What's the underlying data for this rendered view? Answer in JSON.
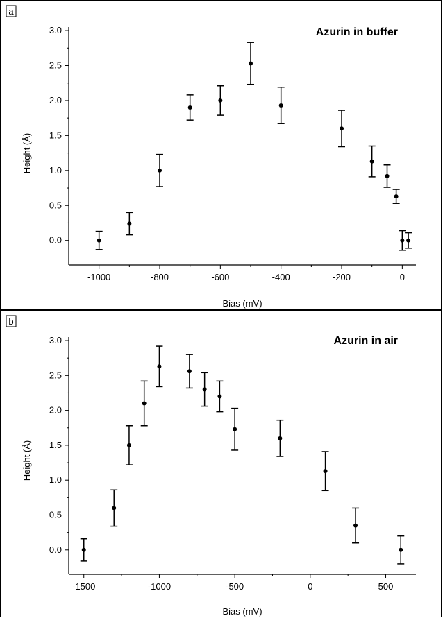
{
  "chart_data": [
    {
      "type": "scatter",
      "panel_label": "a",
      "title": "Azurin in buffer",
      "xlabel": "Bias (mV)",
      "ylabel": "Height (Å)",
      "xlim": [
        -1100,
        45
      ],
      "ylim": [
        -0.35,
        3.05
      ],
      "xticks": [
        -1000,
        -800,
        -600,
        -400,
        -200,
        0
      ],
      "xtick_labels": [
        "-1000",
        "-800",
        "-600",
        "-400",
        "-200",
        "0"
      ],
      "yticks": [
        0.0,
        0.5,
        1.0,
        1.5,
        2.0,
        2.5,
        3.0
      ],
      "ytick_labels": [
        "0.0",
        "0.5",
        "1.0",
        "1.5",
        "2.0",
        "2.5",
        "3.0"
      ],
      "grid": false,
      "series": [
        {
          "x": [
            -1000,
            -900,
            -800,
            -700,
            -600,
            -500,
            -400,
            -200,
            -100,
            -50,
            -20,
            0,
            20
          ],
          "y": [
            0.0,
            0.24,
            1.0,
            1.9,
            2.0,
            2.53,
            1.93,
            1.6,
            1.13,
            0.92,
            0.63,
            0.0,
            0.0
          ],
          "err": [
            0.13,
            0.16,
            0.23,
            0.18,
            0.21,
            0.3,
            0.26,
            0.26,
            0.22,
            0.16,
            0.1,
            0.14,
            0.11
          ]
        }
      ]
    },
    {
      "type": "scatter",
      "panel_label": "b",
      "title": "Azurin in air",
      "xlabel": "Bias (mV)",
      "ylabel": "Height (Å)",
      "xlim": [
        -1600,
        700
      ],
      "ylim": [
        -0.35,
        3.05
      ],
      "xticks": [
        -1500,
        -1000,
        -500,
        0,
        500
      ],
      "xtick_labels": [
        "-1500",
        "-1000",
        "-500",
        "0",
        "500"
      ],
      "yticks": [
        0.0,
        0.5,
        1.0,
        1.5,
        2.0,
        2.5,
        3.0
      ],
      "ytick_labels": [
        "0.0",
        "0.5",
        "1.0",
        "1.5",
        "2.0",
        "2.5",
        "3.0"
      ],
      "grid": false,
      "series": [
        {
          "x": [
            -1500,
            -1300,
            -1200,
            -1100,
            -1000,
            -800,
            -700,
            -600,
            -500,
            -200,
            100,
            300,
            600
          ],
          "y": [
            0.0,
            0.6,
            1.5,
            2.1,
            2.63,
            2.56,
            2.3,
            2.2,
            1.73,
            1.6,
            1.13,
            0.35,
            0.0
          ],
          "err": [
            0.16,
            0.26,
            0.28,
            0.32,
            0.29,
            0.24,
            0.24,
            0.22,
            0.3,
            0.26,
            0.28,
            0.25,
            0.2
          ]
        }
      ]
    }
  ]
}
